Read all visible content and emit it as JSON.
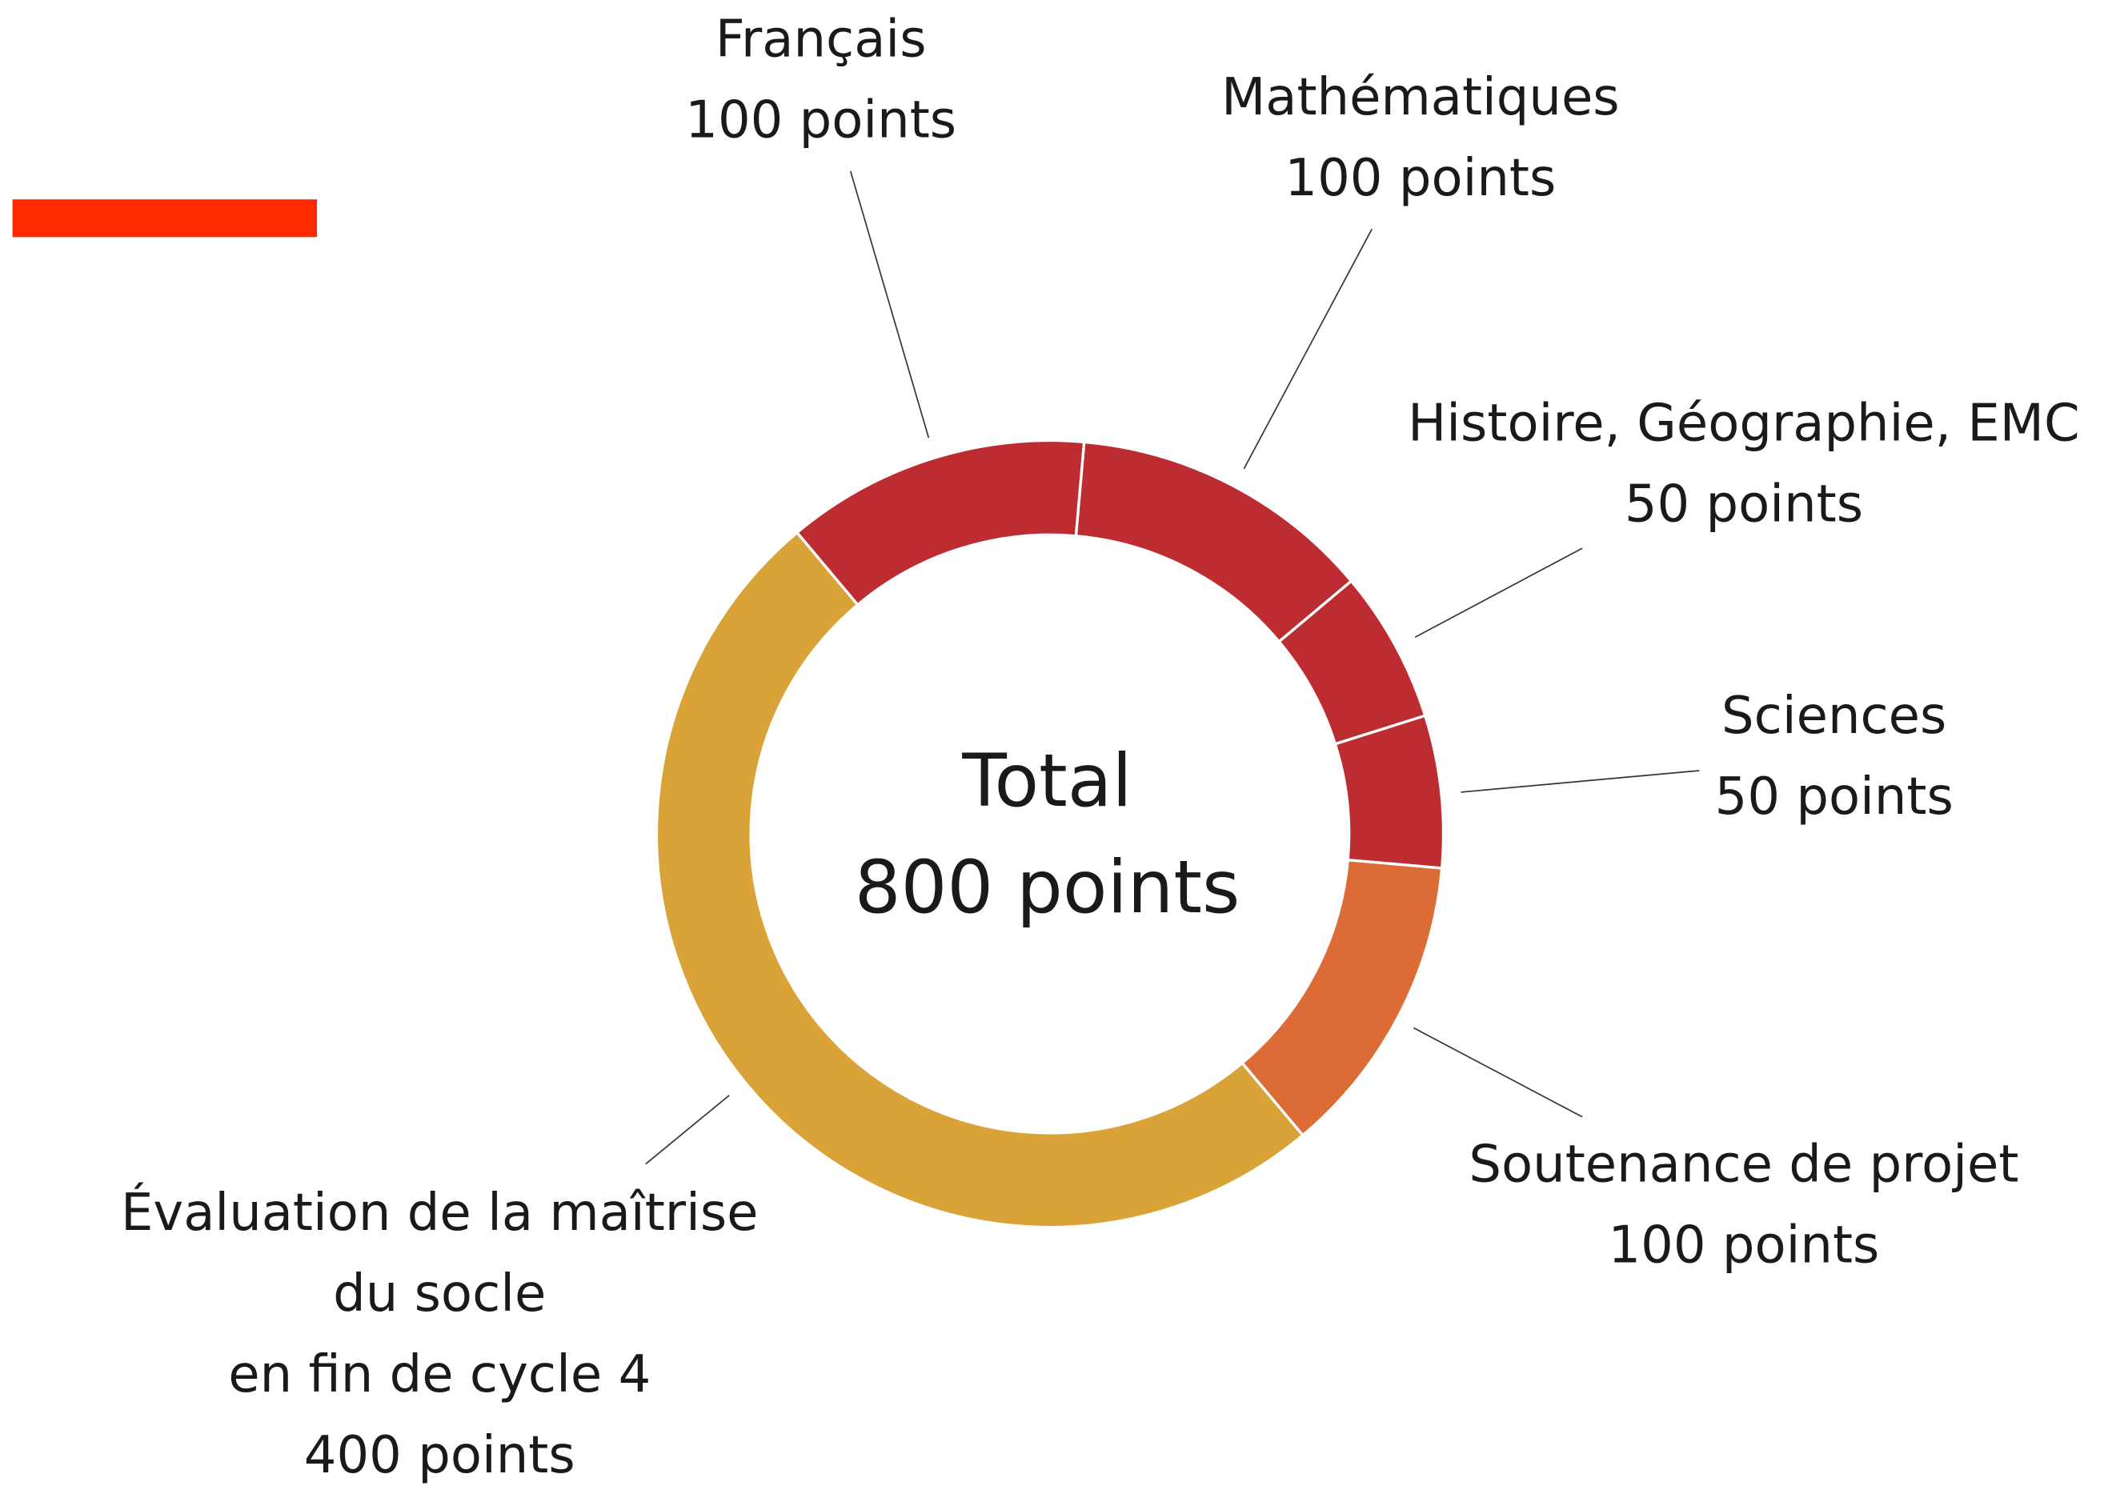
{
  "chart_data": {
    "type": "donut",
    "center_title": "Total",
    "center_label": "800 points",
    "categories": [
      "Français",
      "Mathématiques",
      "Histoire, Géographie, EMC",
      "Sciences",
      "Soutenance de projet",
      "Évaluation de la maîtrise\ndu socle\nen fin de cycle 4"
    ],
    "values": [
      100,
      100,
      50,
      50,
      100,
      400
    ],
    "value_labels": [
      "100 points",
      "100 points",
      "50 points",
      "50 points",
      "100 points",
      "400 points"
    ],
    "colors": [
      "#bd2c30",
      "#bd2c30",
      "#bd2c30",
      "#bd2c30",
      "#dc6b35",
      "#d9a337"
    ],
    "startangle": -40,
    "direction": "clockwise"
  }
}
